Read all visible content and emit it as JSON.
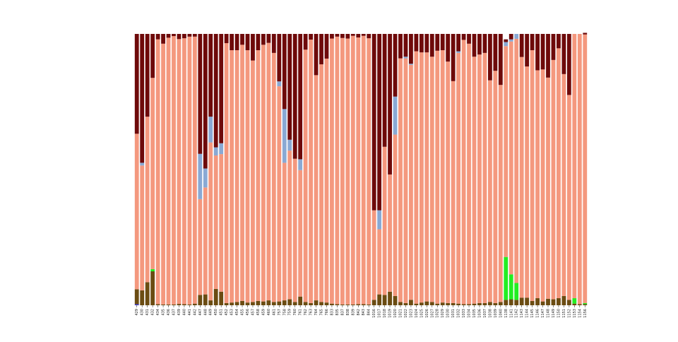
{
  "chart_data": {
    "type": "bar",
    "stacked": true,
    "normalized": true,
    "title": "",
    "xlabel": "",
    "ylabel": "",
    "ylim": [
      0,
      1
    ],
    "grid": false,
    "legend": "none",
    "categories": [
      "429",
      "430",
      "431",
      "432",
      "434",
      "435",
      "436",
      "437",
      "439",
      "440",
      "441",
      "442",
      "447",
      "448",
      "449",
      "450",
      "451",
      "452",
      "453",
      "454",
      "455",
      "456",
      "457",
      "458",
      "459",
      "460",
      "461",
      "757",
      "758",
      "759",
      "760",
      "761",
      "762",
      "763",
      "764",
      "765",
      "766",
      "833",
      "835",
      "837",
      "838",
      "839",
      "842",
      "843",
      "844",
      "1016",
      "1017",
      "1018",
      "1019",
      "1020",
      "1021",
      "1022",
      "1023",
      "1024",
      "1025",
      "1026",
      "1027",
      "1028",
      "1029",
      "1030",
      "1031",
      "1032",
      "1033",
      "1034",
      "1035",
      "1036",
      "1037",
      "1038",
      "1039",
      "1040",
      "1138",
      "1141",
      "1142",
      "1143",
      "1144",
      "1145",
      "1146",
      "1147",
      "1148",
      "1149",
      "1150",
      "1151",
      "1152",
      "1153",
      "1154",
      "1156"
    ],
    "series": [
      {
        "color": "#3b3bc9",
        "values": [
          0.004,
          0,
          0,
          0,
          0,
          0,
          0,
          0,
          0,
          0,
          0,
          0,
          0,
          0,
          0,
          0,
          0,
          0,
          0,
          0,
          0,
          0,
          0,
          0,
          0,
          0,
          0,
          0,
          0,
          0,
          0,
          0,
          0,
          0,
          0,
          0,
          0,
          0,
          0,
          0,
          0,
          0,
          0,
          0,
          0,
          0,
          0,
          0,
          0,
          0,
          0,
          0,
          0,
          0,
          0,
          0,
          0,
          0,
          0,
          0,
          0,
          0,
          0,
          0,
          0,
          0,
          0,
          0,
          0,
          0,
          0,
          0,
          0,
          0,
          0,
          0,
          0,
          0,
          0,
          0,
          0,
          0,
          0,
          0,
          0,
          0
        ]
      },
      {
        "color": "#6b4c12",
        "values": [
          0.055,
          0.055,
          0.085,
          0.125,
          0.004,
          0.003,
          0.003,
          0.003,
          0.005,
          0.004,
          0.003,
          0.006,
          0.038,
          0.04,
          0.018,
          0.06,
          0.05,
          0.008,
          0.01,
          0.012,
          0.016,
          0.01,
          0.012,
          0.016,
          0.014,
          0.018,
          0.012,
          0.014,
          0.018,
          0.022,
          0.012,
          0.032,
          0.012,
          0.008,
          0.018,
          0.012,
          0.01,
          0.006,
          0.004,
          0.003,
          0.003,
          0.003,
          0.004,
          0.004,
          0.003,
          0.02,
          0.04,
          0.038,
          0.05,
          0.034,
          0.012,
          0.008,
          0.02,
          0.006,
          0.01,
          0.014,
          0.012,
          0.006,
          0.01,
          0.008,
          0.008,
          0.006,
          0.004,
          0.004,
          0.006,
          0.008,
          0.008,
          0.012,
          0.008,
          0.012,
          0.02,
          0.022,
          0.02,
          0.028,
          0.028,
          0.016,
          0.026,
          0.014,
          0.024,
          0.022,
          0.026,
          0.034,
          0.02,
          0.006,
          0.004,
          0.004
        ]
      },
      {
        "color": "#22ee22",
        "values": [
          0,
          0,
          0,
          0.008,
          0,
          0,
          0,
          0,
          0,
          0,
          0,
          0,
          0,
          0,
          0,
          0,
          0,
          0,
          0,
          0,
          0,
          0,
          0,
          0,
          0,
          0,
          0,
          0,
          0,
          0,
          0,
          0,
          0,
          0,
          0,
          0,
          0,
          0,
          0,
          0,
          0,
          0,
          0,
          0,
          0,
          0,
          0,
          0,
          0,
          0,
          0,
          0,
          0,
          0,
          0,
          0,
          0,
          0,
          0,
          0,
          0,
          0,
          0,
          0,
          0,
          0,
          0,
          0,
          0,
          0,
          0.158,
          0.092,
          0.062,
          0,
          0,
          0,
          0,
          0,
          0,
          0,
          0,
          0,
          0,
          0.02,
          0,
          0.004
        ]
      },
      {
        "color": "#f4987e",
        "values": [
          0.573,
          0.46,
          0.61,
          0.705,
          0.976,
          0.961,
          0.983,
          0.989,
          0.976,
          0.98,
          0.987,
          0.984,
          0.353,
          0.394,
          0.582,
          0.492,
          0.507,
          0.958,
          0.93,
          0.928,
          0.944,
          0.93,
          0.89,
          0.924,
          0.946,
          0.949,
          0.918,
          0.793,
          0.507,
          0.548,
          0.528,
          0.466,
          0.93,
          0.971,
          0.83,
          0.876,
          0.899,
          0.977,
          0.986,
          0.982,
          0.98,
          0.99,
          0.983,
          0.989,
          0.981,
          0.33,
          0.24,
          0.546,
          0.432,
          0.595,
          0.898,
          0.902,
          0.866,
          0.93,
          0.922,
          0.918,
          0.904,
          0.932,
          0.93,
          0.89,
          0.818,
          0.924,
          0.974,
          0.96,
          0.91,
          0.916,
          0.922,
          0.817,
          0.856,
          0.8,
          0.777,
          0.858,
          0.9,
          0.887,
          0.852,
          0.924,
          0.84,
          0.855,
          0.815,
          0.882,
          0.921,
          0.818,
          0.755,
          0.974,
          0.996,
          0.99
        ]
      },
      {
        "color": "#89a9d4",
        "values": [
          0,
          0.01,
          0,
          0,
          0,
          0,
          0,
          0,
          0,
          0,
          0,
          0,
          0.167,
          0.07,
          0.095,
          0.03,
          0.04,
          0,
          0,
          0,
          0,
          0,
          0,
          0,
          0,
          0,
          0,
          0.018,
          0.198,
          0.04,
          0,
          0.04,
          0,
          0,
          0,
          0,
          0,
          0,
          0,
          0,
          0,
          0,
          0,
          0,
          0,
          0,
          0.07,
          0,
          0,
          0.14,
          0,
          0.006,
          0.004,
          0,
          0,
          0,
          0,
          0,
          0,
          0,
          0,
          0.006,
          0,
          0,
          0,
          0,
          0,
          0,
          0,
          0,
          0.015,
          0.008,
          0.018,
          0,
          0,
          0,
          0,
          0,
          0,
          0,
          0,
          0,
          0,
          0,
          0,
          0
        ]
      },
      {
        "color": "#6e0a0a",
        "values": [
          0.368,
          0.475,
          0.305,
          0.162,
          0.02,
          0.036,
          0.014,
          0.008,
          0.019,
          0.016,
          0.01,
          0.01,
          0.442,
          0.496,
          0.305,
          0.418,
          0.403,
          0.034,
          0.06,
          0.06,
          0.04,
          0.06,
          0.098,
          0.06,
          0.04,
          0.033,
          0.07,
          0.175,
          0.277,
          0.39,
          0.46,
          0.462,
          0.058,
          0.021,
          0.152,
          0.112,
          0.091,
          0.017,
          0.01,
          0.015,
          0.017,
          0.007,
          0.013,
          0.007,
          0.016,
          0.65,
          0.65,
          0.416,
          0.518,
          0.231,
          0.09,
          0.084,
          0.11,
          0.064,
          0.068,
          0.068,
          0.084,
          0.062,
          0.06,
          0.102,
          0.174,
          0.064,
          0.022,
          0.036,
          0.084,
          0.076,
          0.07,
          0.171,
          0.136,
          0.188,
          0.01,
          0.02,
          0,
          0.085,
          0.12,
          0.06,
          0.134,
          0.131,
          0.161,
          0.096,
          0.053,
          0.148,
          0.225,
          0,
          0,
          0.006
        ]
      }
    ]
  }
}
